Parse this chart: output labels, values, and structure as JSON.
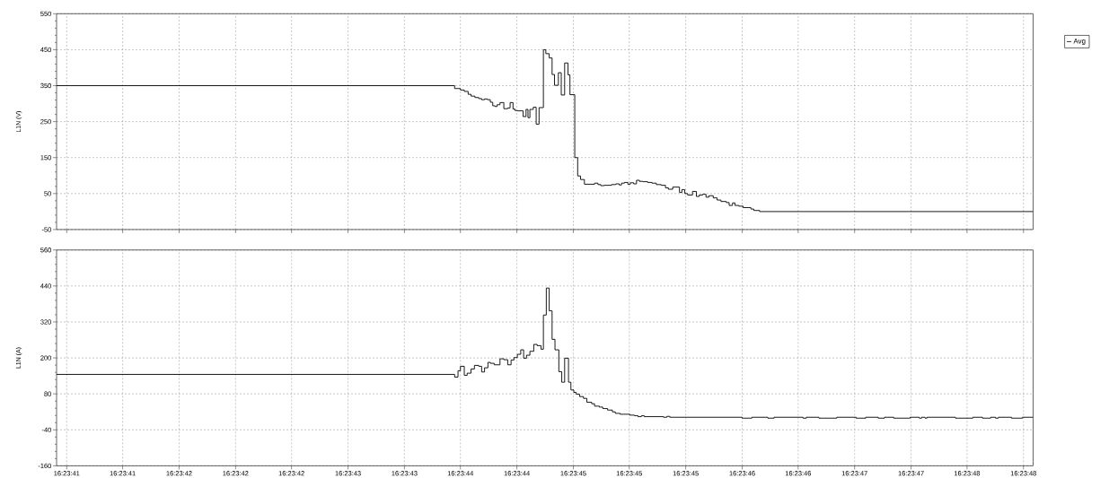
{
  "chart_data": [
    {
      "type": "step",
      "ylabel": "L1N (V)",
      "xlim": [
        16.394646,
        16.39667
      ],
      "ylim": [
        -50,
        550
      ],
      "yticks": [
        -50,
        50,
        150,
        250,
        350,
        450,
        550
      ],
      "grid": true,
      "legend": "top right",
      "tick_labels": "y",
      "x": [
        16.394646,
        16.395471,
        16.395483,
        16.395491,
        16.395499,
        16.395505,
        16.395513,
        16.395521,
        16.395527,
        16.395533,
        16.395539,
        16.395545,
        16.39555,
        16.395555,
        16.395559,
        16.395565,
        16.395573,
        16.395581,
        16.395586,
        16.395592,
        16.395596,
        16.395601,
        16.395613,
        16.395619,
        16.395623,
        16.395627,
        16.395634,
        16.39564,
        16.395646,
        16.395655,
        16.39566,
        16.395667,
        16.395673,
        16.395678,
        16.395686,
        16.395692,
        16.395699,
        16.395706,
        16.39571,
        16.39572,
        16.395726,
        16.395732,
        16.39574,
        16.395761,
        16.395768,
        16.395774,
        16.395781,
        16.395796,
        16.395805,
        16.395812,
        16.395817,
        16.395823,
        16.39583,
        16.395835,
        16.395842,
        16.395848,
        16.395854,
        16.395861,
        16.395871,
        16.39588,
        16.395889,
        16.395899,
        16.395908,
        16.395914,
        16.395923,
        16.395937,
        16.395942,
        16.395948,
        16.395954,
        16.395964,
        16.395972,
        16.395978,
        16.395985,
        16.395992,
        16.395998,
        16.396007,
        16.396015,
        16.396023,
        16.396034,
        16.39604,
        16.396047,
        16.396052,
        16.39606,
        16.396069,
        16.396085,
        16.396091,
        16.396103,
        16.39667
      ],
      "series": [
        {
          "name": "Avg",
          "color": "#000000",
          "values": [
            350,
            342,
            338,
            334,
            326,
            321,
            317,
            314,
            311,
            313,
            311,
            304,
            294,
            292,
            297,
            303,
            286,
            288,
            303,
            285,
            281,
            280,
            264,
            284,
            261,
            284,
            290,
            243,
            289,
            450,
            439,
            427,
            381,
            351,
            386,
            324,
            413,
            380,
            325,
            150,
            99,
            89,
            76,
            79,
            75,
            72,
            73,
            75,
            77,
            74,
            79,
            81,
            76,
            80,
            77,
            87,
            84,
            83,
            81,
            79,
            75,
            73,
            66,
            62,
            68,
            53,
            61,
            50,
            46,
            56,
            42,
            46,
            48,
            40,
            44,
            38,
            32,
            28,
            25,
            17,
            24,
            17,
            15,
            11,
            7,
            3,
            0,
            0
          ]
        }
      ]
    },
    {
      "type": "step",
      "ylabel": "L1N (A)",
      "xlim": [
        16.394646,
        16.39667
      ],
      "ylim": [
        -160,
        560
      ],
      "xticks": [
        {
          "value": 16.394667,
          "label": "16:23:41"
        },
        {
          "value": 16.394783,
          "label": "16:23:41"
        },
        {
          "value": 16.3949,
          "label": "16:23:42"
        },
        {
          "value": 16.395017,
          "label": "16:23:42"
        },
        {
          "value": 16.395133,
          "label": "16:23:42"
        },
        {
          "value": 16.39525,
          "label": "16:23:43"
        },
        {
          "value": 16.395367,
          "label": "16:23:43"
        },
        {
          "value": 16.395483,
          "label": "16:23:44"
        },
        {
          "value": 16.3956,
          "label": "16:23:44"
        },
        {
          "value": 16.395717,
          "label": "16:23:45"
        },
        {
          "value": 16.395833,
          "label": "16:23:45"
        },
        {
          "value": 16.39595,
          "label": "16:23:45"
        },
        {
          "value": 16.396067,
          "label": "16:23:46"
        },
        {
          "value": 16.396183,
          "label": "16:23:46"
        },
        {
          "value": 16.3963,
          "label": "16:23:47"
        },
        {
          "value": 16.396417,
          "label": "16:23:47"
        },
        {
          "value": 16.396533,
          "label": "16:23:48"
        },
        {
          "value": 16.39665,
          "label": "16:23:48"
        }
      ],
      "yticks": [
        -160,
        -40,
        80,
        200,
        320,
        440,
        560
      ],
      "grid": true,
      "x": [
        16.394646,
        16.395471,
        16.395478,
        16.395483,
        16.395491,
        16.395497,
        16.395505,
        16.395512,
        16.395521,
        16.395527,
        16.395533,
        16.39554,
        16.395545,
        16.395553,
        16.395565,
        16.395573,
        16.395581,
        16.395588,
        16.395594,
        16.395601,
        16.395608,
        16.395614,
        16.39562,
        16.395627,
        16.395635,
        16.395642,
        16.39565,
        16.395655,
        16.395661,
        16.395667,
        16.395673,
        16.395679,
        16.395687,
        16.395693,
        16.395699,
        16.395707,
        16.395712,
        16.395718,
        16.395723,
        16.39573,
        16.395738,
        16.395745,
        16.395755,
        16.395761,
        16.395771,
        16.395778,
        16.395788,
        16.395798,
        16.395804,
        16.395814,
        16.395834,
        16.395844,
        16.395851,
        16.395858,
        16.395864,
        16.395904,
        16.395911,
        16.395917,
        16.396067,
        16.396087,
        16.39612,
        16.396133,
        16.396193,
        16.3962,
        16.396226,
        16.396263,
        16.396303,
        16.396323,
        16.396349,
        16.396362,
        16.396381,
        16.396415,
        16.396434,
        16.396439,
        16.396446,
        16.39645,
        16.396509,
        16.396545,
        16.396565,
        16.396582,
        16.396592,
        16.396598,
        16.396625,
        16.396648,
        16.39667
      ],
      "series": [
        {
          "color": "#000000",
          "values": [
            145,
            136,
            157,
            172,
            142,
            149,
            163,
            175,
            172,
            153,
            167,
            185,
            182,
            177,
            197,
            194,
            177,
            193,
            201,
            212,
            227,
            199,
            209,
            222,
            245,
            241,
            229,
            343,
            433,
            357,
            262,
            227,
            154,
            119,
            199,
            119,
            93,
            85,
            79,
            71,
            65,
            52,
            47,
            39,
            36,
            31,
            26,
            20,
            15,
            12,
            9,
            7,
            4,
            7,
            4,
            2,
            5,
            2,
            -1,
            2,
            -1,
            2,
            -1,
            2,
            -1,
            2,
            -1,
            2,
            -1,
            2,
            -1,
            2,
            -1,
            2,
            -1,
            2,
            -1,
            2,
            -1,
            2,
            -1,
            2,
            -1,
            2,
            2
          ]
        }
      ]
    }
  ]
}
